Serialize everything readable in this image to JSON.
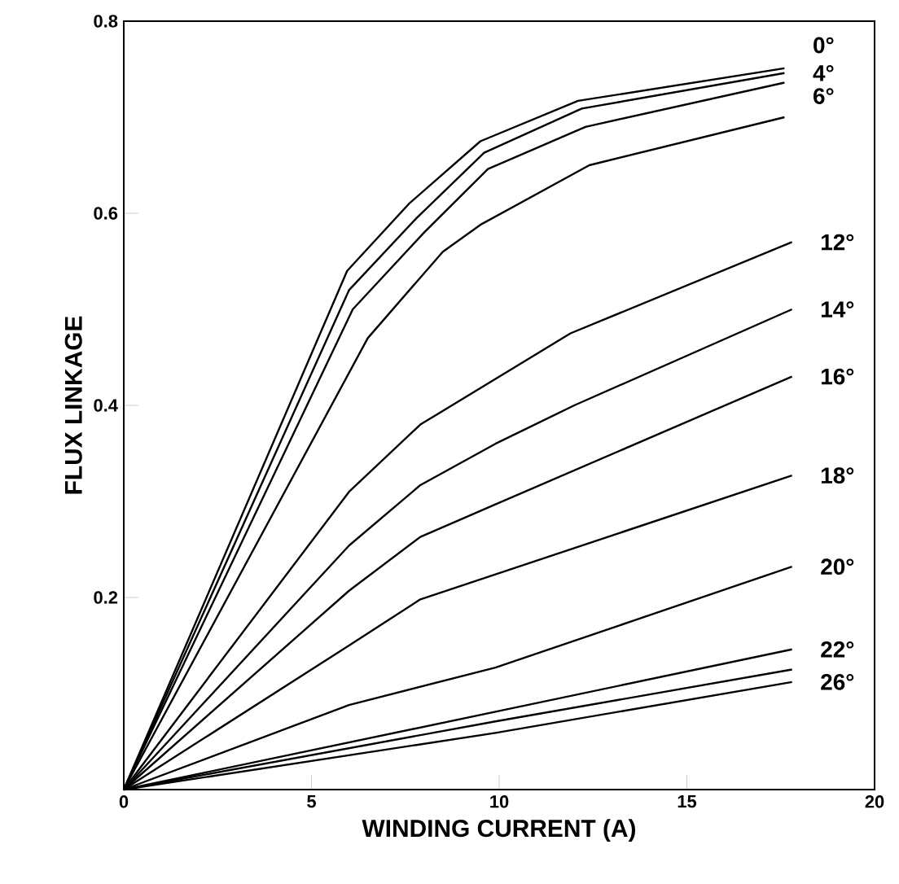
{
  "chart_data": {
    "type": "line",
    "xlabel": "WINDING CURRENT (A)",
    "ylabel": "FLUX LINKAGE",
    "xlim": [
      0,
      20
    ],
    "ylim": [
      0,
      0.8
    ],
    "xticks": [
      0,
      5,
      10,
      15,
      20
    ],
    "yticks": [
      {
        "value": 0,
        "label": null
      },
      0.2,
      0.4,
      0.6,
      0.8
    ],
    "grid": false,
    "legend": false,
    "marker": "none",
    "line_style": "solid",
    "series": [
      {
        "name": "0°",
        "color": "#000000",
        "x": [
          0,
          5.95,
          7.6,
          9.5,
          12.1,
          17.6
        ],
        "values": [
          0,
          0.54,
          0.61,
          0.675,
          0.717,
          0.751
        ]
      },
      {
        "name": "4°",
        "color": "#000000",
        "x": [
          0,
          6.0,
          7.8,
          9.6,
          12.2,
          17.6
        ],
        "values": [
          0,
          0.52,
          0.595,
          0.663,
          0.709,
          0.746
        ]
      },
      {
        "name": "6°",
        "color": "#000000",
        "x": [
          0,
          6.1,
          8.0,
          9.7,
          12.3,
          17.6
        ],
        "values": [
          0,
          0.5,
          0.58,
          0.646,
          0.69,
          0.736
        ]
      },
      {
        "color": "#000000",
        "x": [
          0,
          6.5,
          8.5,
          9.5,
          12.4,
          17.6
        ],
        "values": [
          0,
          0.47,
          0.56,
          0.588,
          0.65,
          0.7
        ]
      },
      {
        "name": "12°",
        "color": "#000000",
        "x": [
          0,
          6.0,
          7.9,
          11.9,
          17.8
        ],
        "values": [
          0,
          0.31,
          0.38,
          0.475,
          0.57
        ]
      },
      {
        "name": "14°",
        "color": "#000000",
        "x": [
          0,
          6.0,
          7.9,
          9.9,
          12.0,
          17.8
        ],
        "values": [
          0,
          0.254,
          0.317,
          0.36,
          0.4,
          0.5
        ]
      },
      {
        "name": "16°",
        "color": "#000000",
        "x": [
          0,
          6.0,
          7.9,
          9.9,
          17.8
        ],
        "values": [
          0,
          0.207,
          0.263,
          0.297,
          0.43
        ]
      },
      {
        "name": "18°",
        "color": "#000000",
        "x": [
          0,
          6.0,
          7.9,
          17.8
        ],
        "values": [
          0,
          0.15,
          0.198,
          0.327
        ]
      },
      {
        "name": "20°",
        "color": "#000000",
        "x": [
          0,
          6.0,
          9.9,
          17.8
        ],
        "values": [
          0,
          0.088,
          0.127,
          0.232
        ]
      },
      {
        "name": "22°",
        "color": "#000000",
        "x": [
          0,
          9.9,
          17.8
        ],
        "values": [
          0,
          0.081,
          0.146
        ]
      },
      {
        "color": "#000000",
        "x": [
          0,
          9.9,
          17.8
        ],
        "values": [
          0,
          0.071,
          0.125
        ]
      },
      {
        "name": "26°",
        "color": "#000000",
        "x": [
          0,
          9.9,
          17.8
        ],
        "values": [
          0,
          0.059,
          0.112
        ]
      }
    ]
  }
}
